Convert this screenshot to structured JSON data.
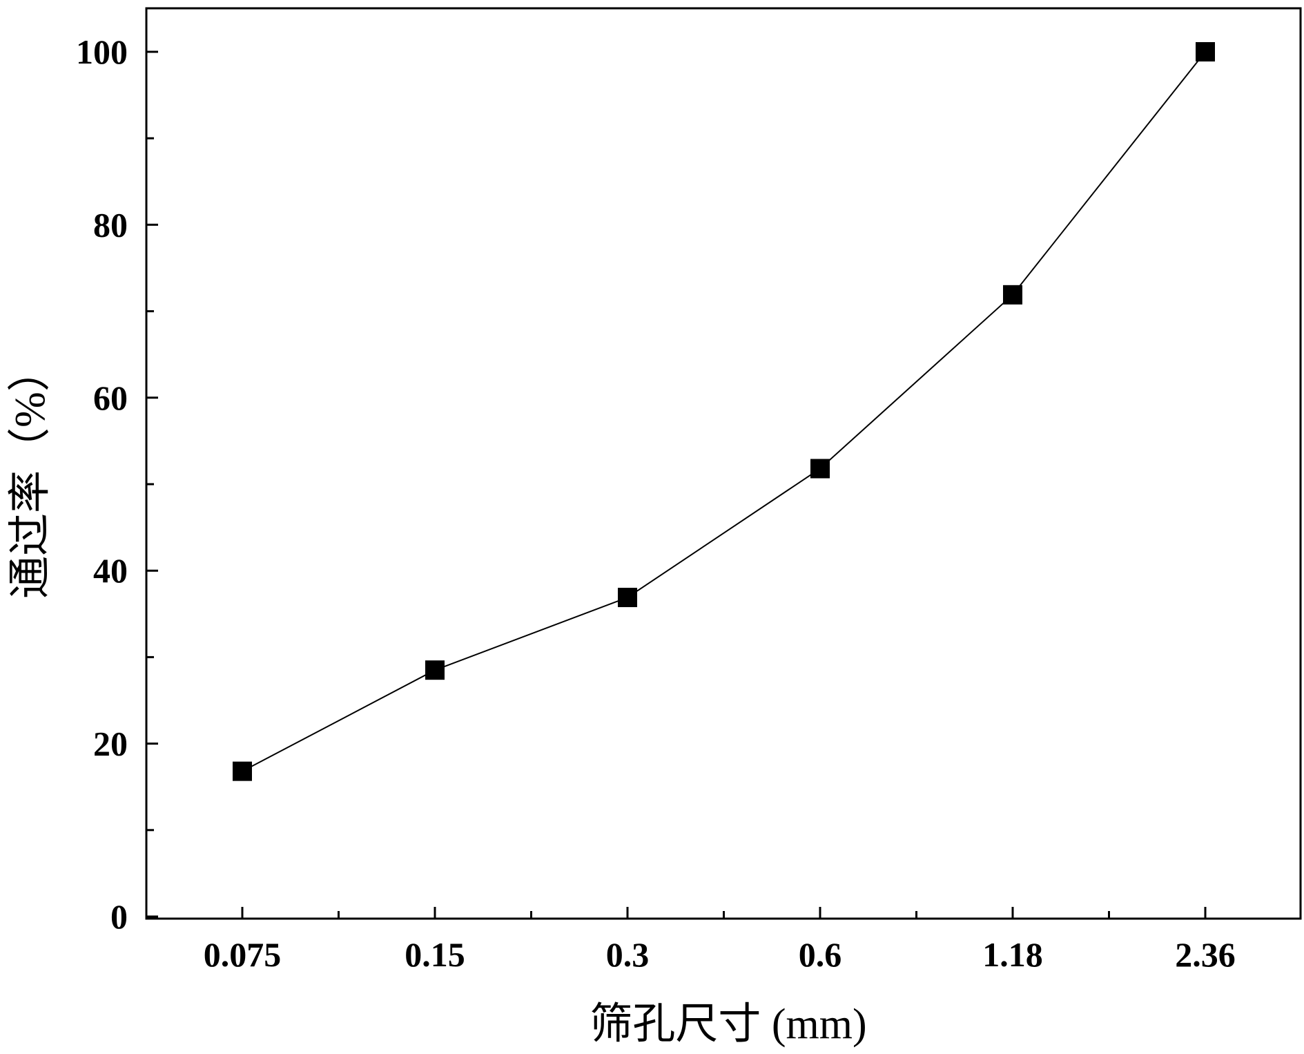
{
  "chart_data": {
    "type": "line",
    "title": "",
    "xlabel": "筛孔尺寸 (mm)",
    "ylabel": "通过率（%）",
    "categories": [
      "0.075",
      "0.15",
      "0.3",
      "0.6",
      "1.18",
      "2.36"
    ],
    "series": [
      {
        "values": [
          16.8,
          28.5,
          36.9,
          51.8,
          71.9,
          100
        ],
        "marker": "square",
        "color": "#000000"
      }
    ],
    "ylim": [
      0,
      105
    ],
    "yticks": [
      0,
      20,
      40,
      60,
      80,
      100
    ],
    "yminor_step": 10,
    "grid": false,
    "legend": "none"
  }
}
